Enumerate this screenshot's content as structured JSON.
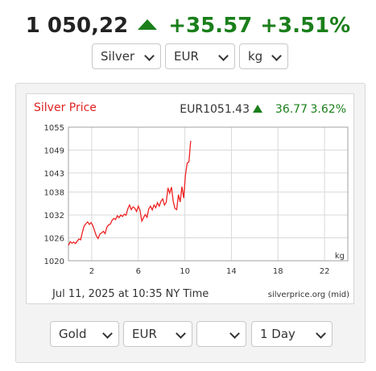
{
  "header": {
    "price": "1 050,22",
    "change": "+35.57",
    "change_pct": "+3.51%",
    "direction_icon": "triangle-up-icon",
    "up_color": "#1a7f1a"
  },
  "top_selectors": [
    {
      "value": "Silver"
    },
    {
      "value": "EUR"
    },
    {
      "value": "kg"
    }
  ],
  "bottom_selectors": [
    {
      "value": "Gold"
    },
    {
      "value": "EUR"
    },
    {
      "value": ""
    },
    {
      "value": "1 Day"
    }
  ],
  "chart_data": {
    "type": "line",
    "title": "Silver Price",
    "title_color": "#e02020",
    "summary": {
      "price": "EUR1051.43",
      "change": "36.77",
      "change_pct": "3.62%",
      "color": "#1a7f1a"
    },
    "unit_label": "kg",
    "timestamp": "Jul 11, 2025 at 10:35 NY Time",
    "source": "silverprice.org (mid)",
    "line_color": "#ee2222",
    "grid": true,
    "xlim": [
      0,
      24
    ],
    "ylim": [
      1020,
      1055
    ],
    "x_ticks": [
      2,
      6,
      10,
      14,
      18,
      22
    ],
    "x_tick_labels": [
      "2",
      "6",
      "10",
      "14",
      "18",
      "22"
    ],
    "y_ticks": [
      1020,
      1026,
      1032,
      1038,
      1043,
      1049,
      1055
    ],
    "y_tick_labels": [
      "1020",
      "1026",
      "1032",
      "1038",
      "1043",
      "1049",
      "1055"
    ],
    "series": [
      {
        "x": [
          0.0,
          0.15,
          0.3,
          0.45,
          0.6,
          0.75,
          0.9,
          1.05,
          1.2,
          1.35,
          1.5,
          1.65,
          1.8,
          1.95,
          2.1,
          2.25,
          2.4,
          2.55,
          2.7,
          2.85,
          3.0,
          3.15,
          3.3,
          3.45,
          3.6,
          3.75,
          3.9,
          4.05,
          4.2,
          4.35,
          4.5,
          4.65,
          4.8,
          4.95,
          5.1,
          5.25,
          5.4,
          5.55,
          5.7,
          5.85,
          6.0,
          6.15,
          6.3,
          6.45,
          6.6,
          6.75,
          6.9,
          7.05,
          7.2,
          7.35,
          7.5,
          7.65,
          7.8,
          7.95,
          8.1,
          8.25,
          8.4,
          8.55,
          8.7,
          8.85,
          9.0,
          9.15,
          9.3,
          9.45,
          9.6,
          9.75,
          9.9,
          10.05,
          10.2,
          10.35,
          10.5
        ],
        "y": [
          1024.0,
          1025.0,
          1024.6,
          1024.9,
          1024.5,
          1025.1,
          1025.7,
          1025.5,
          1027.5,
          1029.1,
          1029.7,
          1030.2,
          1029.5,
          1030.0,
          1029.2,
          1027.8,
          1026.5,
          1025.8,
          1027.0,
          1027.3,
          1027.7,
          1027.1,
          1028.8,
          1029.4,
          1029.6,
          1030.6,
          1031.1,
          1030.8,
          1031.8,
          1031.3,
          1032.0,
          1031.6,
          1032.2,
          1031.9,
          1033.6,
          1034.6,
          1033.4,
          1034.1,
          1033.8,
          1032.9,
          1034.3,
          1033.2,
          1030.4,
          1031.3,
          1032.1,
          1031.4,
          1033.6,
          1034.3,
          1033.3,
          1034.6,
          1033.9,
          1035.2,
          1034.3,
          1035.6,
          1036.2,
          1034.6,
          1035.3,
          1039.1,
          1037.7,
          1039.3,
          1035.6,
          1033.7,
          1033.4,
          1037.3,
          1035.4,
          1039.4,
          1036.4,
          1042.4,
          1045.6,
          1045.9,
          1051.4
        ]
      }
    ]
  }
}
